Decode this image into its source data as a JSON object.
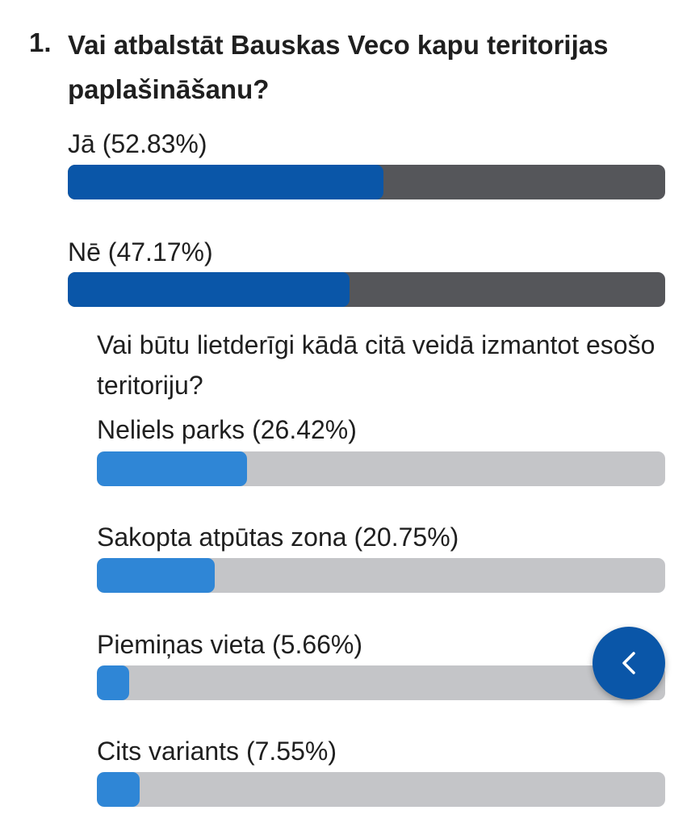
{
  "question": {
    "number": "1.",
    "title": "Vai atbalstāt Bauskas Veco kapu teritorijas paplašināšanu?",
    "options": [
      {
        "label": "Jā (52.83%)",
        "percent": 52.83
      },
      {
        "label": "Nē (47.17%)",
        "percent": 47.17
      }
    ]
  },
  "sub_question": {
    "title": "Vai būtu lietderīgi kādā citā veidā izmantot esošo teritoriju?",
    "options": [
      {
        "label": "Neliels parks (26.42%)",
        "percent": 26.42
      },
      {
        "label": "Sakopta atpūtas zona (20.75%)",
        "percent": 20.75
      },
      {
        "label": "Piemiņas vieta (5.66%)",
        "percent": 5.66
      },
      {
        "label": "Cits variants (7.55%)",
        "percent": 7.55
      }
    ]
  },
  "colors": {
    "main_fill": "#0a56a8",
    "main_track": "#55565a",
    "sub_fill": "#2f86d6",
    "sub_track": "#c4c5c8"
  },
  "back_button": {
    "icon": "chevron-left-icon"
  }
}
